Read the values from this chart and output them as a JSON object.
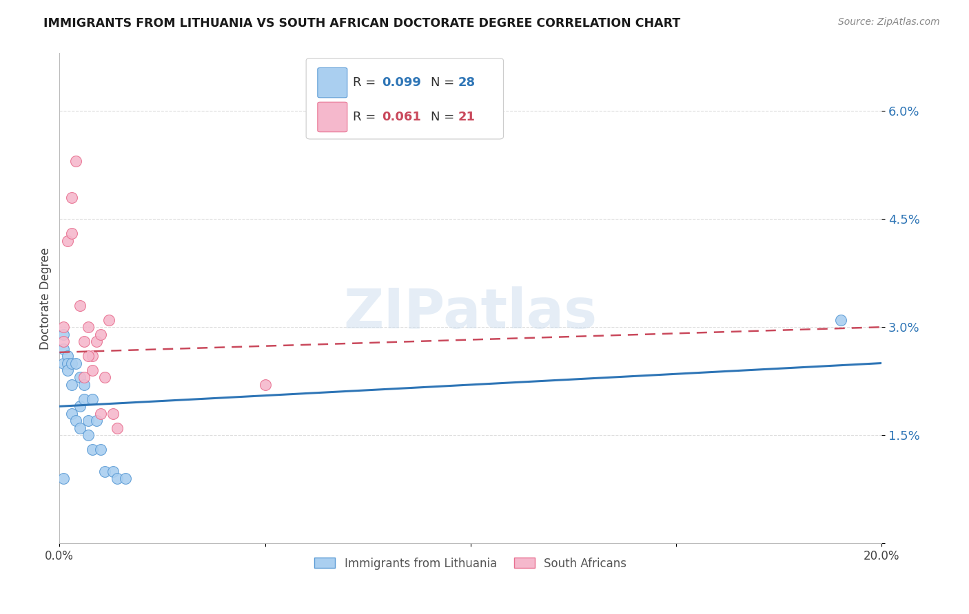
{
  "title": "IMMIGRANTS FROM LITHUANIA VS SOUTH AFRICAN DOCTORATE DEGREE CORRELATION CHART",
  "source": "Source: ZipAtlas.com",
  "ylabel": "Doctorate Degree",
  "y_ticks": [
    0.0,
    0.015,
    0.03,
    0.045,
    0.06
  ],
  "y_tick_labels": [
    "",
    "1.5%",
    "3.0%",
    "4.5%",
    "6.0%"
  ],
  "x_lim": [
    0.0,
    0.2
  ],
  "y_lim": [
    0.0,
    0.068
  ],
  "x_ticks": [
    0.0,
    0.05,
    0.1,
    0.15,
    0.2
  ],
  "x_tick_labels": [
    "0.0%",
    "",
    "",
    "",
    "20.0%"
  ],
  "legend_label1": "Immigrants from Lithuania",
  "legend_label2": "South Africans",
  "blue_scatter_x": [
    0.001,
    0.001,
    0.001,
    0.002,
    0.002,
    0.002,
    0.003,
    0.003,
    0.003,
    0.004,
    0.004,
    0.005,
    0.005,
    0.005,
    0.006,
    0.006,
    0.007,
    0.007,
    0.008,
    0.008,
    0.009,
    0.01,
    0.011,
    0.013,
    0.014,
    0.016,
    0.19,
    0.001
  ],
  "blue_scatter_y": [
    0.029,
    0.027,
    0.025,
    0.026,
    0.025,
    0.024,
    0.025,
    0.022,
    0.018,
    0.025,
    0.017,
    0.023,
    0.019,
    0.016,
    0.022,
    0.02,
    0.017,
    0.015,
    0.02,
    0.013,
    0.017,
    0.013,
    0.01,
    0.01,
    0.009,
    0.009,
    0.031,
    0.009
  ],
  "pink_scatter_x": [
    0.001,
    0.001,
    0.002,
    0.003,
    0.004,
    0.005,
    0.006,
    0.007,
    0.008,
    0.008,
    0.009,
    0.01,
    0.011,
    0.013,
    0.014,
    0.05,
    0.007,
    0.01,
    0.012,
    0.006,
    0.003
  ],
  "pink_scatter_y": [
    0.03,
    0.028,
    0.042,
    0.048,
    0.053,
    0.033,
    0.028,
    0.03,
    0.026,
    0.024,
    0.028,
    0.018,
    0.023,
    0.018,
    0.016,
    0.022,
    0.026,
    0.029,
    0.031,
    0.023,
    0.043
  ],
  "blue_line_x": [
    0.0,
    0.2
  ],
  "blue_line_y": [
    0.019,
    0.025
  ],
  "pink_line_x": [
    0.0,
    0.2
  ],
  "pink_line_y": [
    0.0265,
    0.03
  ],
  "scatter_size": 130,
  "blue_color": "#AACFF0",
  "pink_color": "#F5B8CC",
  "blue_edge_color": "#5B9BD5",
  "pink_edge_color": "#E87090",
  "blue_line_color": "#2E75B6",
  "pink_line_color": "#C9485B",
  "watermark": "ZIPatlas",
  "background_color": "#FFFFFF",
  "grid_color": "#DDDDDD"
}
